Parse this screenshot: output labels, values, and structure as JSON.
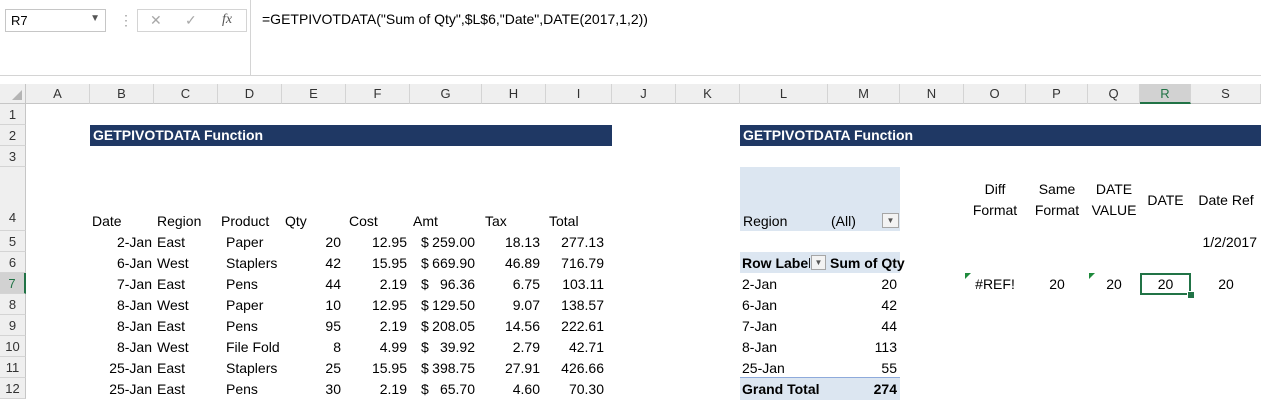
{
  "formula_bar": {
    "name_box": "R7",
    "cancel_glyph": "✕",
    "enter_glyph": "✓",
    "fx_glyph": "fx",
    "formula": "=GETPIVOTDATA(\"Sum of Qty\",$L$6,\"Date\",DATE(2017,1,2))"
  },
  "columns": [
    "A",
    "B",
    "C",
    "D",
    "E",
    "F",
    "G",
    "H",
    "I",
    "J",
    "K",
    "L",
    "M",
    "N",
    "O",
    "P",
    "Q",
    "R",
    "S"
  ],
  "rows": [
    "1",
    "2",
    "3",
    "4",
    "5",
    "6",
    "7",
    "8",
    "9",
    "10",
    "11",
    "12"
  ],
  "selected_cell": "R7",
  "left_banner": "GETPIVOTDATA Function",
  "right_banner": "GETPIVOTDATA Function",
  "table": {
    "headers": [
      "Date",
      "Region",
      "Product",
      "Qty",
      "Cost",
      "Amt",
      "Tax",
      "Total"
    ],
    "rows": [
      [
        "2-Jan",
        "East",
        "Paper",
        "20",
        "12.95",
        "$",
        "259.00",
        "18.13",
        "277.13"
      ],
      [
        "6-Jan",
        "West",
        "Staplers",
        "42",
        "15.95",
        "$",
        "669.90",
        "46.89",
        "716.79"
      ],
      [
        "7-Jan",
        "East",
        "Pens",
        "44",
        "2.19",
        "$",
        "96.36",
        "6.75",
        "103.11"
      ],
      [
        "8-Jan",
        "West",
        "Paper",
        "10",
        "12.95",
        "$",
        "129.50",
        "9.07",
        "138.57"
      ],
      [
        "8-Jan",
        "East",
        "Pens",
        "95",
        "2.19",
        "$",
        "208.05",
        "14.56",
        "222.61"
      ],
      [
        "8-Jan",
        "West",
        "File Fold",
        "8",
        "4.99",
        "$",
        "39.92",
        "2.79",
        "42.71"
      ],
      [
        "25-Jan",
        "East",
        "Staplers",
        "25",
        "15.95",
        "$",
        "398.75",
        "27.91",
        "426.66"
      ],
      [
        "25-Jan",
        "East",
        "Pens",
        "30",
        "2.19",
        "$",
        "65.70",
        "4.60",
        "70.30"
      ]
    ]
  },
  "pivot": {
    "filter_label": "Region",
    "filter_value": "(All)",
    "row_labels_header": "Row Labels",
    "values_header": "Sum of Qty",
    "items": [
      {
        "label": "2-Jan",
        "value": "20"
      },
      {
        "label": "6-Jan",
        "value": "42"
      },
      {
        "label": "7-Jan",
        "value": "44"
      },
      {
        "label": "8-Jan",
        "value": "113"
      },
      {
        "label": "25-Jan",
        "value": "55"
      }
    ],
    "grand_total_label": "Grand Total",
    "grand_total_value": "274"
  },
  "compare": {
    "headers": [
      {
        "l1": "Diff",
        "l2": "Format"
      },
      {
        "l1": "Same",
        "l2": "Format"
      },
      {
        "l1": "DATE",
        "l2": "VALUE"
      },
      {
        "l1": "DATE",
        "l2": ""
      },
      {
        "l1": "Date Ref",
        "l2": ""
      }
    ],
    "date_ref_value": "1/2/2017",
    "results": [
      "#REF!",
      "20",
      "20",
      "20",
      "20"
    ]
  },
  "colors": {
    "banner": "#1f3864",
    "pivot_fill": "#dce6f1",
    "selection": "#217346",
    "error_marker": "#1e8a3c"
  }
}
